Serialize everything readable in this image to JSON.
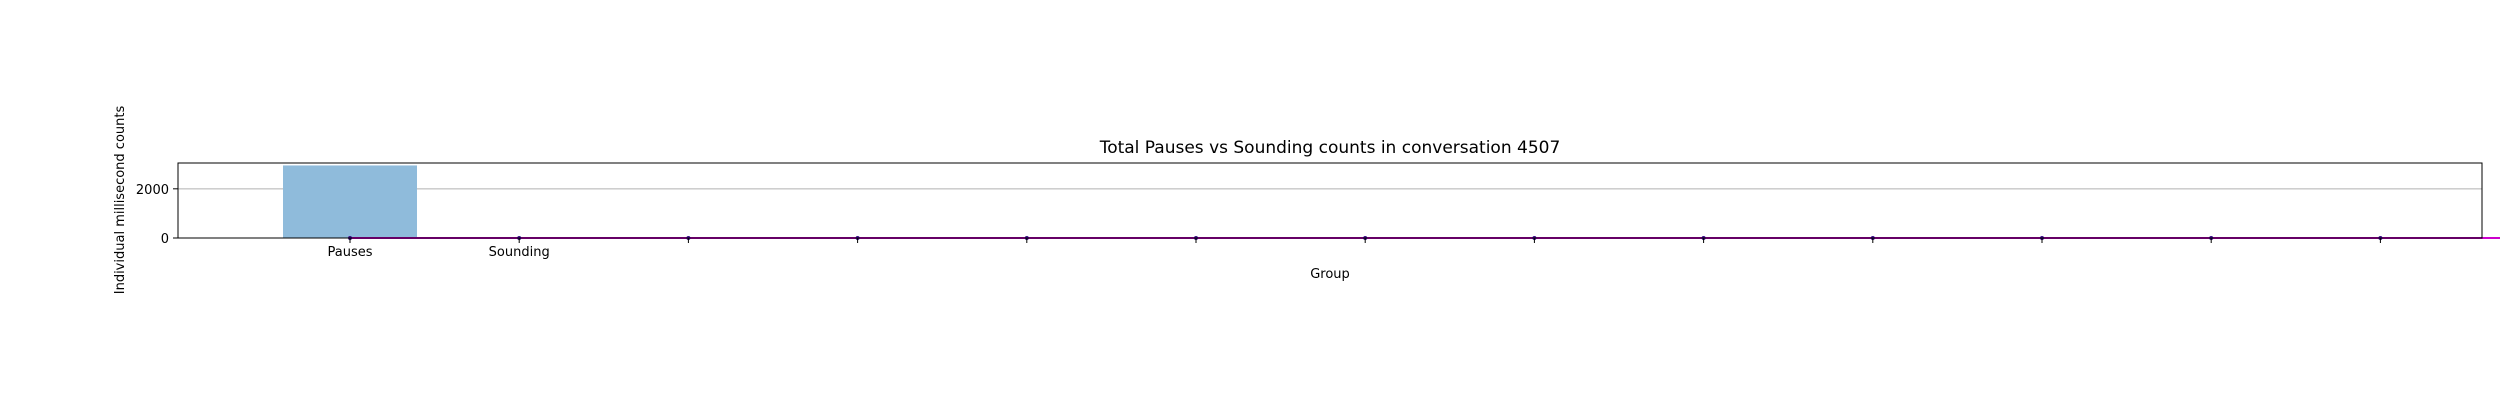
{
  "chart_data": {
    "type": "bar",
    "title": "Total Pauses vs Sounding counts in conversation 4507",
    "xlabel": "Group",
    "ylabel": "Individual millisecond counts",
    "categories": [
      "Pauses",
      "Sounding"
    ],
    "series": [
      {
        "values": [
          2950,
          0
        ]
      }
    ],
    "overlay_line": {
      "values": [
        0,
        0,
        0,
        0,
        0,
        0,
        0,
        0,
        0,
        0,
        0,
        0,
        0,
        0
      ]
    },
    "ylim": [
      0,
      3050
    ],
    "yticks": [
      0,
      2000
    ],
    "grid": "y",
    "legend": "none",
    "colors": {
      "bar": "#8fbbdb",
      "line": "#cc00cc",
      "line_dark": "#3b0a8a",
      "grid": "#b0b0b0",
      "axis": "#000000"
    }
  }
}
